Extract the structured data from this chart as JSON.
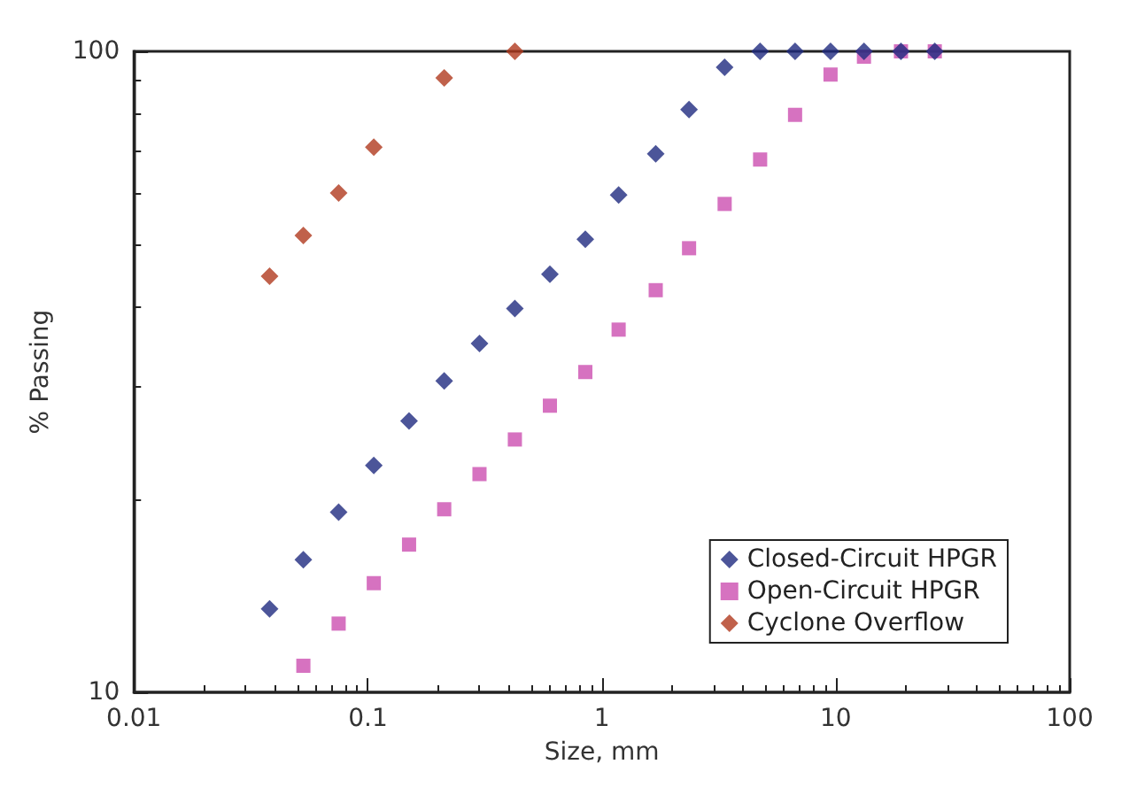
{
  "chart_data": {
    "type": "scatter",
    "xlabel": "Size, mm",
    "ylabel": "% Passing",
    "log": "xy",
    "xlim": [
      0.01,
      100
    ],
    "xticks": [
      0.01,
      0.1,
      1,
      10,
      100
    ],
    "ylim": [
      10,
      100
    ],
    "yticks": [
      10,
      100
    ],
    "grid": false,
    "legend": "bottom right",
    "series": [
      {
        "name": "Closed-Circuit HPGR",
        "color": "#1f2a80",
        "marker": "diamond",
        "x": [
          0.038,
          0.053,
          0.075,
          0.106,
          0.15,
          0.212,
          0.3,
          0.425,
          0.6,
          0.85,
          1.18,
          1.7,
          2.36,
          3.35,
          4.75,
          6.7,
          9.5,
          13.2,
          19,
          26.5
        ],
        "values": [
          13.5,
          16.1,
          19.1,
          22.6,
          26.5,
          30.6,
          35,
          39.7,
          44.9,
          50.9,
          59.7,
          69.2,
          81.1,
          94.4,
          100,
          100,
          100,
          100,
          100,
          100
        ]
      },
      {
        "name": "Open-Circuit HPGR",
        "color": "#cc4fb0",
        "marker": "square",
        "x": [
          0.053,
          0.075,
          0.106,
          0.15,
          0.212,
          0.3,
          0.425,
          0.6,
          0.85,
          1.18,
          1.7,
          2.36,
          3.35,
          4.75,
          6.7,
          9.5,
          13.2,
          19,
          26.5
        ],
        "values": [
          11,
          12.8,
          14.8,
          17,
          19.3,
          21.9,
          24.8,
          28,
          31.6,
          36.8,
          42.4,
          49.3,
          57.8,
          67.8,
          79.6,
          92,
          98.1,
          100,
          100
        ]
      },
      {
        "name": "Cyclone Overflow",
        "color": "#b03a1e",
        "marker": "diamond",
        "x": [
          0.038,
          0.053,
          0.075,
          0.106,
          0.212,
          0.425
        ],
        "values": [
          44.6,
          51.6,
          60.1,
          70.9,
          90.9,
          100
        ]
      }
    ]
  }
}
